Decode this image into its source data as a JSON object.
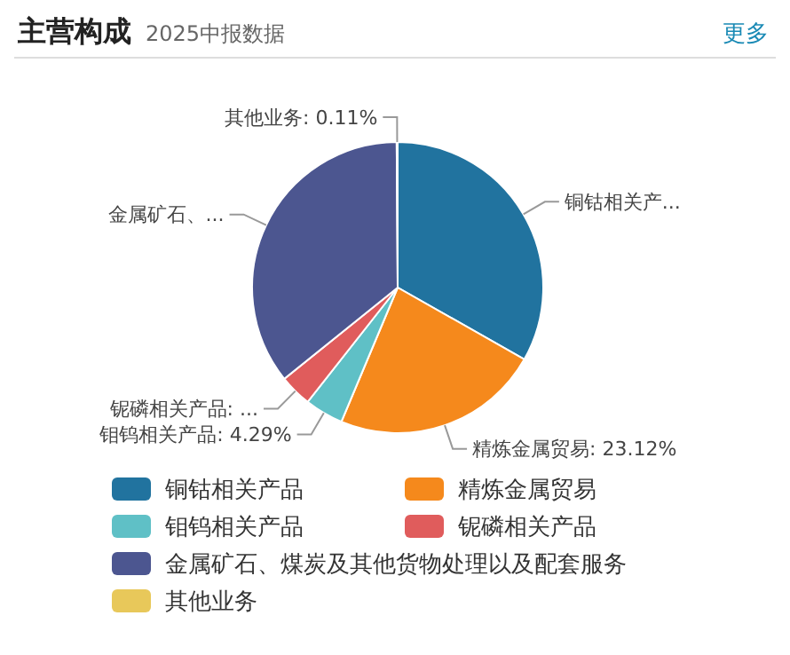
{
  "chart_data": {
    "type": "pie",
    "title": "主营构成",
    "subtitle": "2025中报数据",
    "annotations": [
      "更多"
    ],
    "categories": [
      "铜钴相关产品",
      "精炼金属贸易",
      "钼钨相关产品",
      "铌磷相关产品",
      "金属矿石、煤炭及其他货物处理以及配套服务",
      "其他业务"
    ],
    "values": [
      33.2,
      23.12,
      4.29,
      3.6,
      35.68,
      0.11
    ],
    "colors": [
      "#21739f",
      "#f5891c",
      "#5fc0c6",
      "#e05c5c",
      "#4c5690",
      "#e8c85a"
    ],
    "value_labels": [
      "铜钴相关产...",
      "精炼金属贸易: 23.12%",
      "钼钨相关产品: 4.29%",
      "铌磷相关产品: ...",
      "金属矿石、...",
      "其他业务: 0.11%"
    ],
    "legend": "bottom"
  }
}
